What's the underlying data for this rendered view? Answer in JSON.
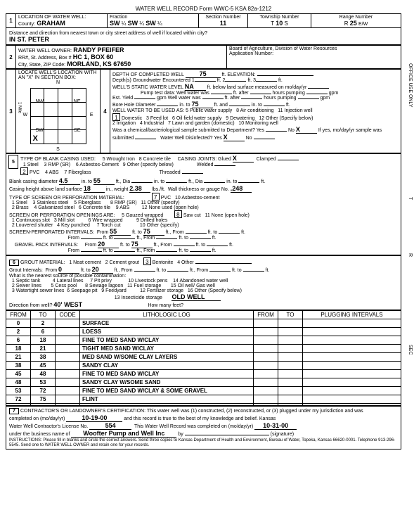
{
  "form_header": "WATER WELL RECORD    Form WWC-5    KSA 82a-1212",
  "sec1": {
    "label": "LOCATION OF WATER WELL:",
    "county_lbl": "County:",
    "county": "GRAHAM",
    "fraction_lbl": "Fraction",
    "f1": "SW",
    "q1": "¼",
    "f2": "SW",
    "q2": "¼",
    "f3": "SW",
    "q3": "¼",
    "section_lbl": "Section Number",
    "section": "11",
    "township_lbl": "Township Number",
    "township_t": "T",
    "township": "10",
    "township_s": "S",
    "range_lbl": "Range Number",
    "range_r": "R",
    "range": "25",
    "range_ew": "E/W",
    "distance_lbl": "Distance and direction from nearest town or city street address of well if located within city?",
    "distance": "IN ST. PETER"
  },
  "sec2": {
    "label": "WATER WELL OWNER:",
    "name": "RANDY PFEIFER",
    "addr_lbl": "RR#, St. Address, Box #",
    "addr": "HC 1, BOX 60",
    "city_lbl": "City, State, ZIP Code:",
    "city": "MORLAND, KS 67650",
    "board": "Board of Agriculture, Division of Water Resources",
    "appno": "Application Number:"
  },
  "sec3": {
    "label": "LOCATE WELL'S LOCATION WITH AN \"X\" IN SECTION BOX:",
    "n": "N",
    "s": "S",
    "e": "E",
    "w": "W",
    "nw": "NW",
    "ne": "NE",
    "sw": "SW",
    "se": "SE",
    "mile": "1 Mile",
    "x": "X"
  },
  "sec4": {
    "label": "DEPTH OF COMPLETED WELL",
    "depth": "75",
    "ft": "ft.",
    "elev_lbl": "ELEVATION:",
    "gw_enc": "Depth(s) Groundwater Encountered",
    "gw1": "1",
    "gw2": "2",
    "gw3": "3",
    "static_lbl": "WELL'S STATIC WATER LEVEL",
    "static": "NA",
    "static_txt": "ft. below land surface measured on mo/day/yr",
    "pump_lbl": "Pump test data:",
    "wellwater": "Well water was",
    "ftafter": "ft. after",
    "hrspump": "hours pumping",
    "gpm": "gpm",
    "estyield": "Est. Yield",
    "bore_lbl": "Bore Hole Diameter",
    "bore_in": "in. to",
    "bore_v": "75",
    "bore_ft": "ft. and",
    "bore_in2": "in. to",
    "bore_ft2": "ft.",
    "use_lbl": "WELL WATER TO BE USED AS:",
    "u1": "Domestic",
    "u2": "Irrigation",
    "u3": "Feed lot",
    "u4": "Industrial",
    "u5": "Public water supply",
    "u6": "Oil field water supply",
    "u7": "Lawn and garden (domestic)",
    "u8": "Air conditioning",
    "u9": "Dewatering",
    "u10": "Monitoring well",
    "u11": "Injection well",
    "u12": "Other (Specify below)",
    "chem": "Was a chemical/bacteriological sample submitted to Department? Yes",
    "no": "No",
    "x": "X",
    "chem2": "If yes, mo/day/yr sample was submitted",
    "disinf": "Water Well Disinfected? Yes",
    "disinf_x": "X",
    "disinf_no": "No"
  },
  "sec5": {
    "label": "TYPE OF BLANK CASING USED:",
    "c1": "Steel",
    "c2": "PVC",
    "c3": "RMP (SR)",
    "c4": "ABS",
    "c5": "Wrought Iron",
    "c6": "Asbestos-Cement",
    "c7": "Fiberglass",
    "c8": "Concrete tile",
    "c9": "Other (specify below)",
    "joints": "CASING JOINTS:",
    "glued": "Glued",
    "glued_x": "X",
    "clamped": "Clamped",
    "welded": "Welded",
    "threaded": "Threaded",
    "diam_lbl": "Blank casing diameter",
    "diam": "4.5",
    "in_to": "in. to",
    "diam_to": "55",
    "ftdia": "ft., Dia",
    "into": "in. to",
    "ftdia2": "ft., Dia",
    "into2": "in. to",
    "ft": "ft.",
    "height_lbl": "Casing height above land surface",
    "height": "18",
    "inwt": "in., weight",
    "wt": "2.38",
    "lbsft": "lbs./ft.",
    "thick": "Wall thickness or gauge No.",
    "thick_v": ".248",
    "screen_lbl": "TYPE OF SCREEN OR PERFORATION MATERIAL:",
    "s1": "Steel",
    "s2": "Brass",
    "s3": "Stainless steel",
    "s4": "Galvanized steel",
    "s5": "Fiberglass",
    "s6": "Concrete tile",
    "s7": "PVC",
    "s8": "RMP (SR)",
    "s9": "ABS",
    "s10": "Asbestos-cement",
    "s11": "Other (specify)",
    "s12": "None used (open hole)",
    "open_lbl": "SCREEN OR PERFORATION OPENINGS ARE:",
    "o1": "Continuous slot",
    "o2": "Louvered shutter",
    "o3": "Mill slot",
    "o4": "Key punched",
    "o5": "Gauzed wrapped",
    "o6": "Wire wrapped",
    "o7": "Torch cut",
    "o8": "Saw cut",
    "o9": "Drilled holes",
    "o10": "Other (specify)",
    "o11": "None (open hole)",
    "perf_lbl": "SCREEN-PERFORATED INTERVALS:",
    "from": "From",
    "to": "ft. to",
    "ftfrom": "ft., From",
    "ftto": "ft.",
    "p_from1": "55",
    "p_to1": "75",
    "grav_lbl": "GRAVEL PACK INTERVALS:",
    "g_from1": "20",
    "g_to1": "75"
  },
  "sec6": {
    "label": "GROUT MATERIAL:",
    "g1": "Neat cement",
    "g2": "Cement grout",
    "g3": "Bentonite",
    "g4": "Other",
    "grout_int": "Grout Intervals:",
    "from": "From",
    "gi_from": "0",
    "to": "ft. to",
    "gi_to": "20",
    "ftfrom": "ft., From",
    "ft": "ft.",
    "nearest": "What is the nearest source of possible contamination:",
    "n1": "Septic tank",
    "n2": "Sewer lines",
    "n3": "Watertight sewer lines",
    "n4": "Lateral lines",
    "n5": "Cess pool",
    "n6": "Seepage pit",
    "n7": "Pit privy",
    "n8": "Sewage lagoon",
    "n9": "Feedyard",
    "n10": "Livestock pens",
    "n11": "Fuel storage",
    "n12": "Fertilizer storage",
    "n13": "Insecticide storage",
    "n14": "Abandoned water well",
    "n15": "Oil well/ Gas well",
    "n16": "Other (Specify below)",
    "n16v": "OLD WELL",
    "dir_lbl": "Direction from well?",
    "dir": "40' WEST",
    "howmany": "How many feet?"
  },
  "log": {
    "h_from": "FROM",
    "h_to": "TO",
    "h_code": "CODE",
    "h_lith": "LITHOLOGIC LOG",
    "h_from2": "FROM",
    "h_to2": "TO",
    "h_plug": "PLUGGING INTERVALS",
    "rows": [
      {
        "from": "0",
        "to": "2",
        "lith": "SURFACE"
      },
      {
        "from": "2",
        "to": "6",
        "lith": "LOESS"
      },
      {
        "from": "6",
        "to": "18",
        "lith": "FINE TO MED SAND W/CLAY"
      },
      {
        "from": "18",
        "to": "21",
        "lith": "TIGHT MED SAND W/CLAY"
      },
      {
        "from": "21",
        "to": "38",
        "lith": "MED SAND W/SOME CLAY LAYERS"
      },
      {
        "from": "38",
        "to": "45",
        "lith": "SANDY CLAY"
      },
      {
        "from": "45",
        "to": "48",
        "lith": "FINE TO MED SAND W/CLAY"
      },
      {
        "from": "48",
        "to": "53",
        "lith": "SANDY CLAY W/SOME SAND"
      },
      {
        "from": "53",
        "to": "72",
        "lith": "FINE TO MED SAND W/CLAY & SOME GRAVEL"
      },
      {
        "from": "72",
        "to": "75",
        "lith": "FLINT"
      },
      {
        "from": "",
        "to": "",
        "lith": ""
      }
    ]
  },
  "sec7": {
    "label": "CONTRACTOR'S OR LANDOWNER'S CERTIFICATION: This water well was (1) constructed, (2) reconstructed, or (3) plugged under my jurisdiction and was",
    "completed": "completed on (mo/day/yr)",
    "date": "10-19-00",
    "record": "and this record is true to the best of my knowledge and belief. Kansas",
    "license": "Water Well Contractor's License No.",
    "licno": "554",
    "completed2": "This Water Well Record was completed on (mo/day/yr)",
    "date2": "10-31-00",
    "under": "under the business name of",
    "biz": "Woofter Pump and Well Inc",
    "by": "by",
    "sig": "(signature)",
    "instr": "INSTRUCTIONS: Please fill in blanks and circle the correct answers. Send three copies to Kansas Department of Health and Environment, Bureau of Water, Topeka, Kansas 66620-0001. Telephone 913-296-5545. Send one to WATER WELL OWNER and retain one for your records."
  },
  "side": {
    "office": "OFFICE USE ONLY",
    "t": "T",
    "r": "R",
    "sec": "SEC"
  }
}
